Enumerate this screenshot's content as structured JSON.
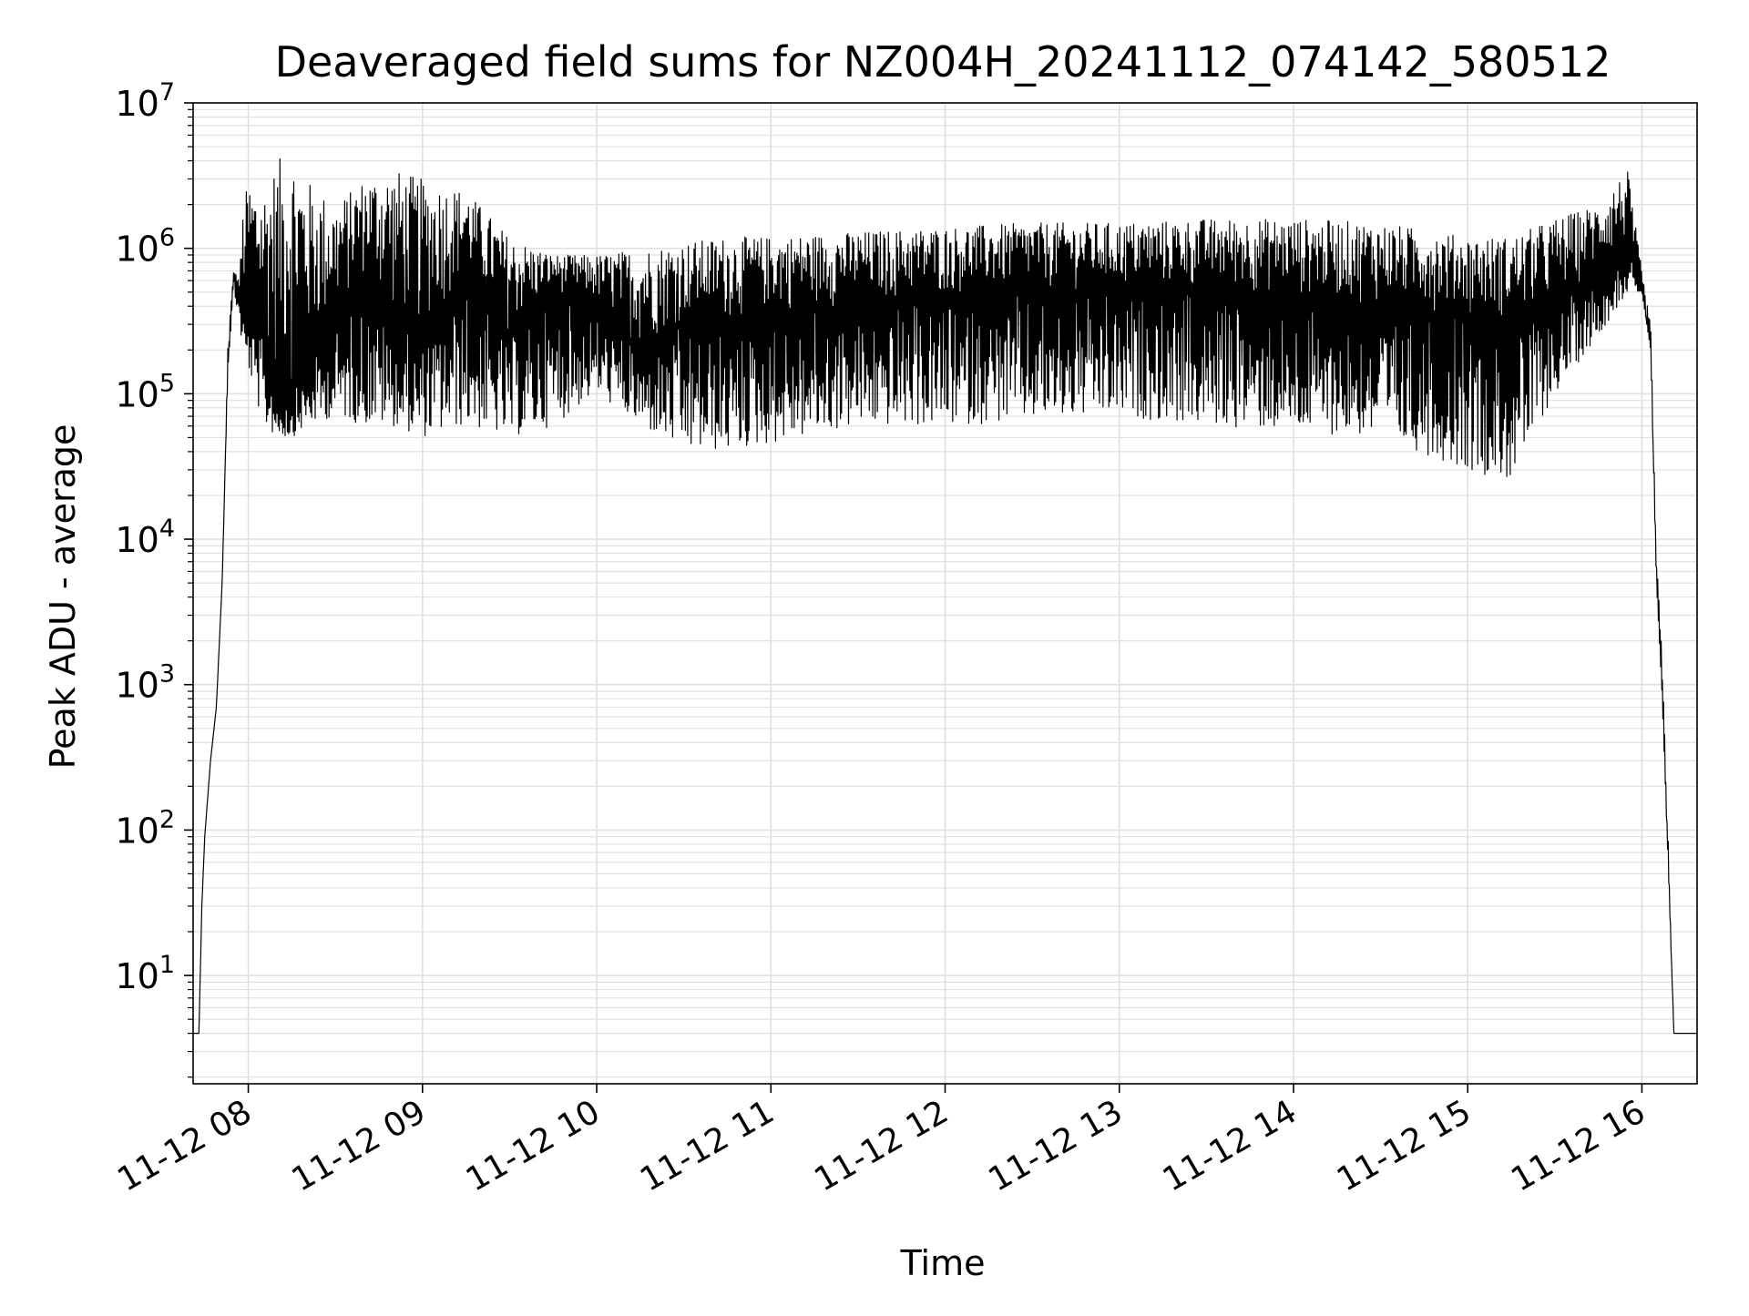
{
  "chart_data": {
    "type": "line",
    "title": "Deaveraged field sums for NZ004H_20241112_074142_580512",
    "xlabel": "Time",
    "ylabel": "Peak ADU - average",
    "yscale": "log",
    "ylim": [
      1.8,
      10000000
    ],
    "xlim": [
      "2024-11-12 07:41",
      "2024-11-12 16:19"
    ],
    "grid": true,
    "line_color": "#000000",
    "x_ticks": [
      "2024-11-12 08:00",
      "2024-11-12 09:00",
      "2024-11-12 10:00",
      "2024-11-12 11:00",
      "2024-11-12 12:00",
      "2024-11-12 13:00",
      "2024-11-12 14:00",
      "2024-11-12 15:00",
      "2024-11-12 16:00"
    ],
    "x_tick_labels": [
      "11-12 08",
      "11-12 09",
      "11-12 10",
      "11-12 11",
      "11-12 12",
      "11-12 13",
      "11-12 14",
      "11-12 15",
      "11-12 16"
    ],
    "y_ticks": [
      10,
      100,
      1000,
      10000,
      100000,
      1000000,
      10000000
    ],
    "y_tick_labels": [
      {
        "base": "10",
        "exp": "1"
      },
      {
        "base": "10",
        "exp": "2"
      },
      {
        "base": "10",
        "exp": "3"
      },
      {
        "base": "10",
        "exp": "4"
      },
      {
        "base": "10",
        "exp": "5"
      },
      {
        "base": "10",
        "exp": "6"
      },
      {
        "base": "10",
        "exp": "7"
      }
    ],
    "series": [
      {
        "x": [
          "2024-11-12 07:41",
          "2024-11-12 07:43",
          "2024-11-12 07:44",
          "2024-11-12 07:45",
          "2024-11-12 07:47",
          "2024-11-12 07:49",
          "2024-11-12 07:51",
          "2024-11-12 07:52",
          "2024-11-12 07:53",
          "2024-11-12 07:55",
          "2024-11-12 07:57",
          "2024-11-12 07:58",
          "2024-11-12 08:00",
          "2024-11-12 08:05",
          "2024-11-12 08:10",
          "2024-11-12 08:15",
          "2024-11-12 08:20",
          "2024-11-12 08:30",
          "2024-11-12 08:40",
          "2024-11-12 08:50",
          "2024-11-12 09:00",
          "2024-11-12 09:15",
          "2024-11-12 09:30",
          "2024-11-12 09:45",
          "2024-11-12 10:00",
          "2024-11-12 10:15",
          "2024-11-12 10:30",
          "2024-11-12 10:45",
          "2024-11-12 11:00",
          "2024-11-12 11:30",
          "2024-11-12 12:00",
          "2024-11-12 12:30",
          "2024-11-12 13:00",
          "2024-11-12 13:30",
          "2024-11-12 14:00",
          "2024-11-12 14:30",
          "2024-11-12 15:00",
          "2024-11-12 15:15",
          "2024-11-12 15:30",
          "2024-11-12 15:45",
          "2024-11-12 15:55",
          "2024-11-12 16:00",
          "2024-11-12 16:03",
          "2024-11-12 16:05",
          "2024-11-12 16:07",
          "2024-11-12 16:09",
          "2024-11-12 16:11",
          "2024-11-12 16:12",
          "2024-11-12 16:14",
          "2024-11-12 16:19"
        ],
        "y": [
          4,
          4,
          30,
          90,
          300,
          700,
          5000,
          30000,
          150000,
          700000,
          500000,
          400000,
          350000,
          250000,
          120000,
          100000,
          150000,
          300000,
          600000,
          300000,
          250000,
          600000,
          250000,
          500000,
          400000,
          200000,
          300000,
          300000,
          350000,
          400000,
          450000,
          500000,
          500000,
          500000,
          450000,
          400000,
          350000,
          300000,
          400000,
          700000,
          1000000,
          500000,
          200000,
          5000,
          800,
          60,
          4,
          4,
          4,
          4
        ],
        "y_low": [
          4,
          4,
          30,
          90,
          300,
          700,
          5000,
          30000,
          150000,
          500000,
          300000,
          200000,
          150000,
          60000,
          50000,
          50000,
          60000,
          70000,
          60000,
          60000,
          50000,
          60000,
          50000,
          60000,
          100000,
          60000,
          40000,
          40000,
          45000,
          60000,
          60000,
          65000,
          70000,
          60000,
          55000,
          50000,
          30000,
          25000,
          100000,
          250000,
          500000,
          500000,
          200000,
          5000,
          800,
          60,
          4,
          4,
          4,
          4
        ],
        "y_high": [
          4,
          4,
          30,
          90,
          300,
          700,
          5000,
          30000,
          250000,
          700000,
          600000,
          1800000,
          3000000,
          2500000,
          4000000,
          5000000,
          3000000,
          2000000,
          3000000,
          3500000,
          3000000,
          2500000,
          1200000,
          900000,
          900000,
          1000000,
          1100000,
          1200000,
          1200000,
          1300000,
          1400000,
          1500000,
          1500000,
          1600000,
          1600000,
          1500000,
          1200000,
          1200000,
          1600000,
          2000000,
          3500000,
          700000,
          300000,
          8000,
          1500,
          100,
          4,
          4,
          4,
          4
        ]
      }
    ]
  }
}
